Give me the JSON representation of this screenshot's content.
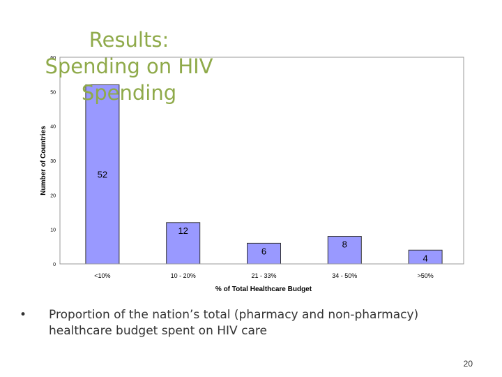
{
  "title": "Results: Spending on HIV Spending",
  "bullet": {
    "mark": "•",
    "text": "Proportion of the nation’s total (pharmacy and non-pharmacy) healthcare budget spent on HIV care"
  },
  "page_number": "20",
  "chart_data": {
    "type": "bar",
    "categories": [
      "<10%",
      "10 - 20%",
      "21 - 33%",
      "34 - 50%",
      ">50%"
    ],
    "values": [
      52,
      12,
      6,
      8,
      4
    ],
    "data_labels": [
      "52",
      "12",
      "6",
      "8",
      "4"
    ],
    "title": "",
    "xlabel": "% of Total Healthcare Budget",
    "ylabel": "Number of Countries",
    "ylim": [
      0,
      60
    ],
    "yticks": [
      0,
      10,
      20,
      30,
      40,
      50,
      60
    ],
    "ytick_labels": [
      "0",
      "10",
      "20",
      "30",
      "40",
      "50",
      "60"
    ],
    "grid": false,
    "legend": "none",
    "bar_color": "#9999ff",
    "bar_edge_color": "#333333"
  }
}
